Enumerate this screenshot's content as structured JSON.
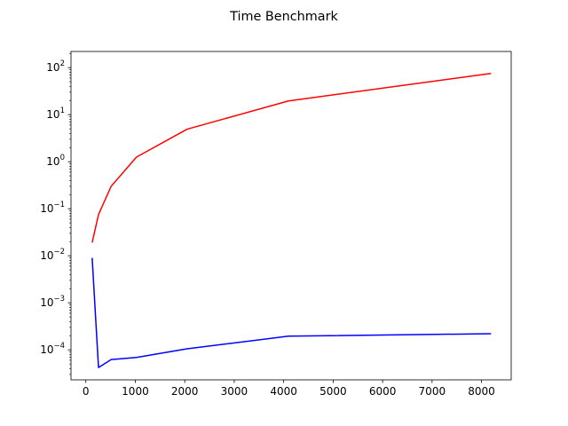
{
  "chart_data": {
    "type": "line",
    "title": "Time Benchmark",
    "xlabel": "",
    "ylabel": "",
    "yscale": "log",
    "xlim": [
      -300,
      8600
    ],
    "ylim": [
      2.3e-05,
      220
    ],
    "grid": false,
    "x_ticks": [
      0,
      1000,
      2000,
      3000,
      4000,
      5000,
      6000,
      7000,
      8000
    ],
    "x_tick_labels": [
      "0",
      "1000",
      "2000",
      "3000",
      "4000",
      "5000",
      "6000",
      "7000",
      "8000"
    ],
    "y_ticks": [
      0.0001,
      0.001,
      0.01,
      0.1,
      1,
      10,
      100
    ],
    "y_tick_labels": [
      {
        "base": "10",
        "exp": "−4"
      },
      {
        "base": "10",
        "exp": "−3"
      },
      {
        "base": "10",
        "exp": "−2"
      },
      {
        "base": "10",
        "exp": "−1"
      },
      {
        "base": "10",
        "exp": "0"
      },
      {
        "base": "10",
        "exp": "1"
      },
      {
        "base": "10",
        "exp": "2"
      }
    ],
    "series": [
      {
        "color": "#ff0000",
        "x": [
          128,
          256,
          512,
          1024,
          2048,
          4096,
          8192
        ],
        "y": [
          0.019,
          0.075,
          0.3,
          1.25,
          4.9,
          19.5,
          75
        ]
      },
      {
        "color": "#0000ff",
        "x": [
          128,
          256,
          512,
          1024,
          2048,
          4096,
          8192
        ],
        "y": [
          0.009,
          4.2e-05,
          6.2e-05,
          6.9e-05,
          0.000105,
          0.000195,
          0.00022
        ]
      }
    ]
  }
}
